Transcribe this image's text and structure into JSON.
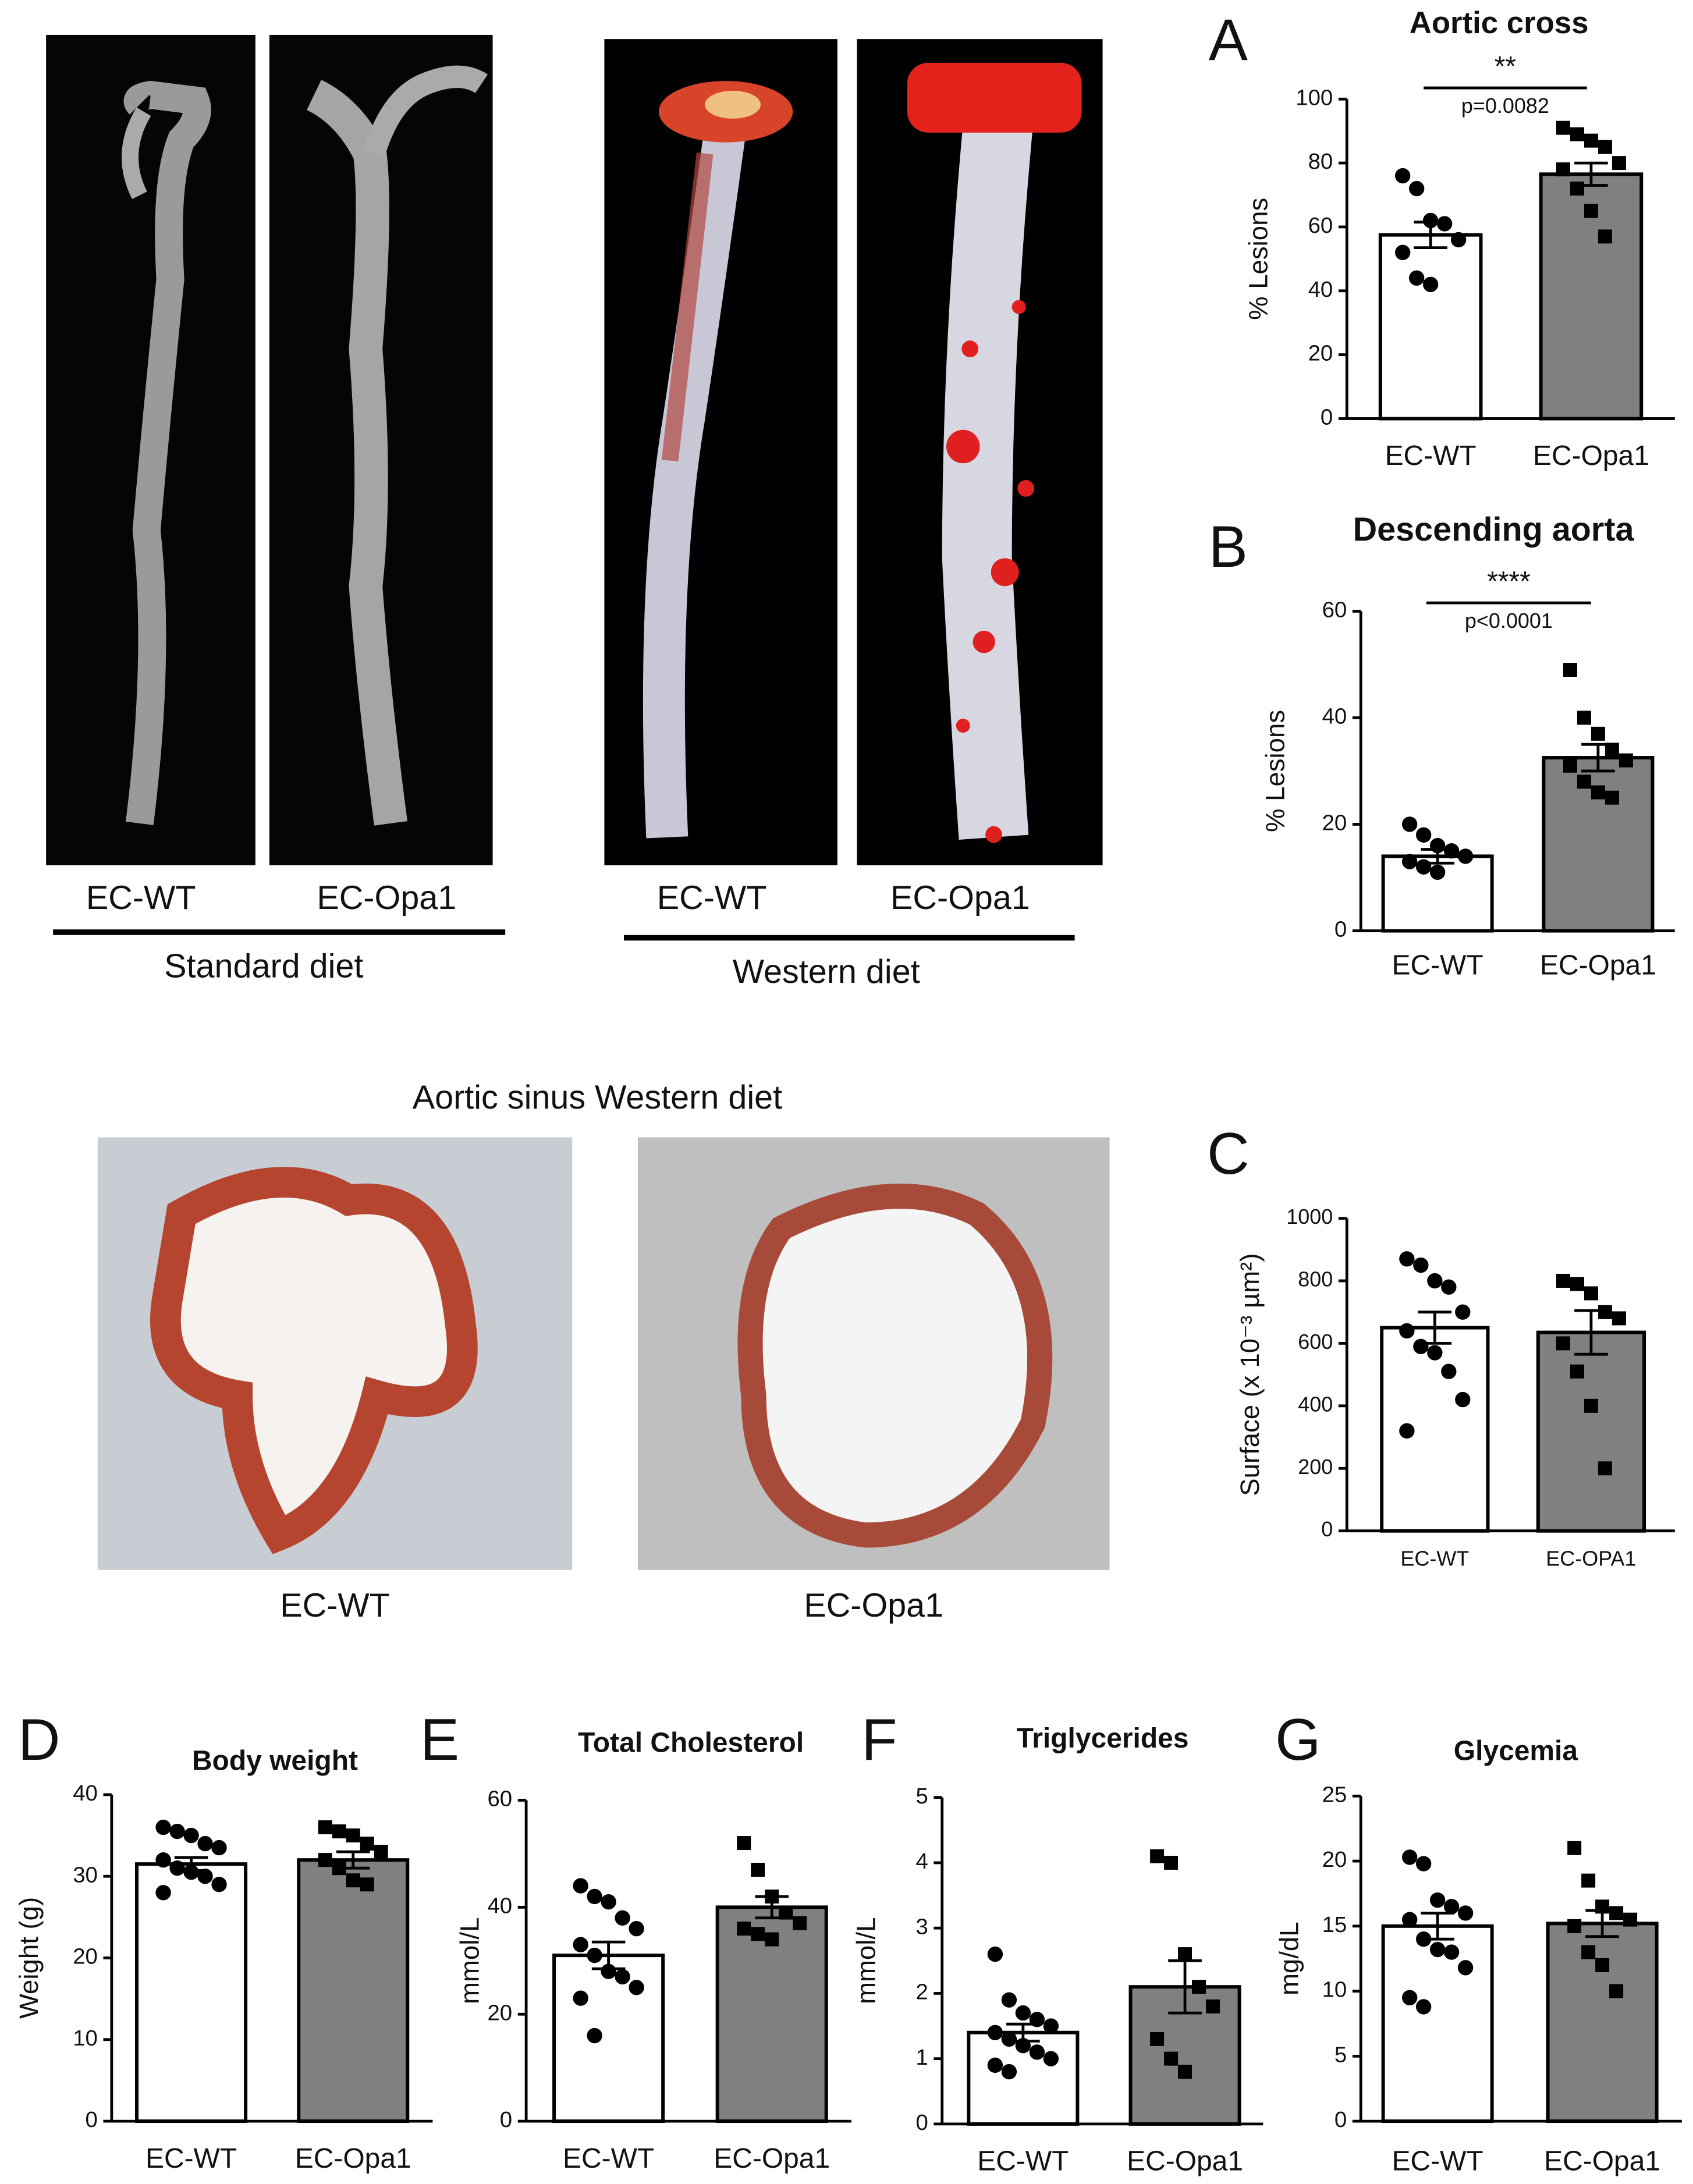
{
  "chart_data": [
    {
      "type": "bar",
      "panel": "A",
      "title": "Aortic cross",
      "ylabel": "% Lesions",
      "categories": [
        "EC-WT",
        "EC-Opa1"
      ],
      "values": [
        57.5,
        76.5
      ],
      "errors": [
        4,
        3.5
      ],
      "colors": [
        "#ffffff",
        "#808080"
      ],
      "markers": [
        "circle",
        "square"
      ],
      "points": [
        [
          76,
          72,
          62,
          61,
          56,
          52,
          44,
          42
        ],
        [
          91,
          89,
          87,
          85,
          80,
          78,
          72,
          65,
          57
        ]
      ],
      "ylim": [
        0,
        100
      ],
      "yticks": [
        0,
        20,
        40,
        60,
        80,
        100
      ],
      "significance": {
        "stars": "**",
        "p": "p=0.0082"
      }
    },
    {
      "type": "bar",
      "panel": "B",
      "title": "Descending aorta",
      "ylabel": "% Lesions",
      "categories": [
        "EC-WT",
        "EC-Opa1"
      ],
      "values": [
        14,
        32.5
      ],
      "errors": [
        1.3,
        2.5
      ],
      "colors": [
        "#ffffff",
        "#808080"
      ],
      "markers": [
        "circle",
        "square"
      ],
      "points": [
        [
          20,
          18,
          16,
          15,
          14,
          13,
          12,
          11
        ],
        [
          49,
          40,
          37,
          34,
          32,
          31,
          28,
          26,
          25
        ]
      ],
      "ylim": [
        0,
        60
      ],
      "yticks": [
        0,
        20,
        40,
        60
      ],
      "significance": {
        "stars": "****",
        "p": "p<0.0001"
      }
    },
    {
      "type": "bar",
      "panel": "C",
      "ylabel": "Surface (x 10⁻³ µm²)",
      "categories": [
        "EC-WT",
        "EC-OPA1"
      ],
      "values": [
        650,
        635
      ],
      "errors": [
        50,
        70
      ],
      "colors": [
        "#ffffff",
        "#808080"
      ],
      "markers": [
        "circle",
        "square"
      ],
      "points": [
        [
          870,
          850,
          800,
          780,
          700,
          640,
          590,
          570,
          510,
          420,
          320
        ],
        [
          800,
          790,
          760,
          700,
          680,
          600,
          510,
          400,
          200
        ]
      ],
      "ylim": [
        0,
        1000
      ],
      "yticks": [
        0,
        200,
        400,
        600,
        800,
        1000
      ]
    },
    {
      "type": "bar",
      "panel": "D",
      "title": "Body weight",
      "ylabel": "Weight (g)",
      "categories": [
        "EC-WT",
        "EC-Opa1"
      ],
      "values": [
        31.5,
        32
      ],
      "errors": [
        0.8,
        1
      ],
      "colors": [
        "#ffffff",
        "#808080"
      ],
      "markers": [
        "circle",
        "square"
      ],
      "points": [
        [
          36,
          35.5,
          35,
          34,
          33.5,
          32,
          31,
          30.5,
          30,
          29,
          28
        ],
        [
          36,
          35.5,
          35,
          34,
          33,
          32,
          31,
          29.5,
          29
        ]
      ],
      "ylim": [
        0,
        40
      ],
      "yticks": [
        0,
        10,
        20,
        30,
        40
      ]
    },
    {
      "type": "bar",
      "panel": "E",
      "title": "Total Cholesterol",
      "ylabel": "mmol/L",
      "categories": [
        "EC-WT",
        "EC-Opa1"
      ],
      "values": [
        31,
        40
      ],
      "errors": [
        2.5,
        2
      ],
      "colors": [
        "#ffffff",
        "#808080"
      ],
      "markers": [
        "circle",
        "square"
      ],
      "points": [
        [
          44,
          42,
          41,
          38,
          36,
          33,
          31,
          28,
          27,
          25,
          23,
          16
        ],
        [
          52,
          47,
          42,
          39,
          37,
          36,
          35,
          34
        ]
      ],
      "ylim": [
        0,
        60
      ],
      "yticks": [
        0,
        20,
        40,
        60
      ]
    },
    {
      "type": "bar",
      "panel": "F",
      "title": "Triglycerides",
      "ylabel": "mmol/L",
      "categories": [
        "EC-WT",
        "EC-Opa1"
      ],
      "values": [
        1.4,
        2.1
      ],
      "errors": [
        0.13,
        0.4
      ],
      "colors": [
        "#ffffff",
        "#808080"
      ],
      "markers": [
        "circle",
        "square"
      ],
      "points": [
        [
          2.6,
          1.9,
          1.7,
          1.6,
          1.5,
          1.4,
          1.3,
          1.2,
          1.1,
          1.0,
          0.9,
          0.8
        ],
        [
          4.1,
          4.0,
          2.6,
          2.1,
          1.8,
          1.3,
          1.0,
          0.8
        ]
      ],
      "ylim": [
        0,
        5
      ],
      "yticks": [
        0,
        1,
        2,
        3,
        4,
        5
      ]
    },
    {
      "type": "bar",
      "panel": "G",
      "title": "Glycemia",
      "ylabel": "mg/dL",
      "categories": [
        "EC-WT",
        "EC-Opa1"
      ],
      "values": [
        15,
        15.2
      ],
      "errors": [
        1,
        1
      ],
      "colors": [
        "#ffffff",
        "#808080"
      ],
      "markers": [
        "circle",
        "square"
      ],
      "points": [
        [
          20.3,
          19.8,
          17,
          16.5,
          16,
          15.5,
          14,
          13.2,
          13,
          11.8,
          9.5,
          8.8
        ],
        [
          21,
          18.5,
          16.5,
          16,
          15.5,
          15,
          13,
          12,
          10
        ]
      ],
      "ylim": [
        0,
        25
      ],
      "yticks": [
        0,
        5,
        10,
        15,
        20,
        25
      ]
    }
  ],
  "images": {
    "standard_diet": {
      "labels": [
        "EC-WT",
        "EC-Opa1"
      ],
      "caption": "Standard diet"
    },
    "western_diet": {
      "labels": [
        "EC-WT",
        "EC-Opa1"
      ],
      "caption": "Western diet"
    },
    "aortic_sinus": {
      "title": "Aortic sinus Western diet",
      "labels": [
        "EC-WT",
        "EC-Opa1"
      ]
    }
  }
}
